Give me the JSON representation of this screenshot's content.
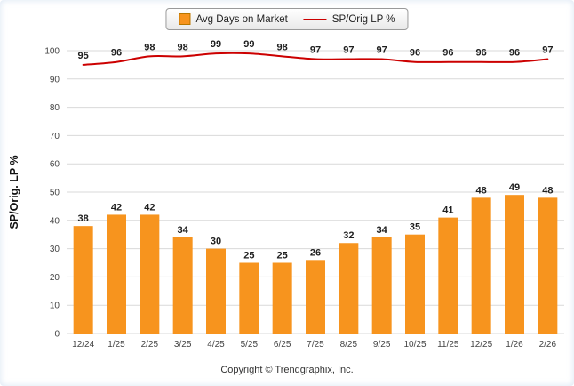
{
  "chart_data": {
    "type": "bar+line",
    "categories": [
      "12/24",
      "1/25",
      "2/25",
      "3/25",
      "4/25",
      "5/25",
      "6/25",
      "7/25",
      "8/25",
      "9/25",
      "10/25",
      "11/25",
      "12/25",
      "1/26",
      "2/26"
    ],
    "series": [
      {
        "name": "Avg Days on Market",
        "type": "bar",
        "color": "#F7941E",
        "values": [
          38,
          42,
          42,
          34,
          30,
          25,
          25,
          26,
          32,
          34,
          35,
          41,
          48,
          49,
          48
        ]
      },
      {
        "name": "SP/Orig LP %",
        "type": "line",
        "color": "#CC0000",
        "values": [
          95,
          96,
          98,
          98,
          99,
          99,
          98,
          97,
          97,
          97,
          96,
          96,
          96,
          96,
          97
        ]
      }
    ],
    "title": "",
    "xlabel": "",
    "ylabel": "SP/Orig. LP %",
    "ylim": [
      0,
      100
    ],
    "ytick_step": 10,
    "grid": true,
    "legend_position": "top"
  },
  "legend": {
    "bar_label": "Avg Days on Market",
    "line_label": "SP/Orig LP %"
  },
  "footer": {
    "copyright": "Copyright © Trendgraphix, Inc."
  },
  "colors": {
    "bar": "#F7941E",
    "bar_border": "#B87700",
    "line": "#CC0000",
    "grid": "#D9D9D9",
    "tick_text": "#444444",
    "value_text": "#1F1F1F"
  }
}
